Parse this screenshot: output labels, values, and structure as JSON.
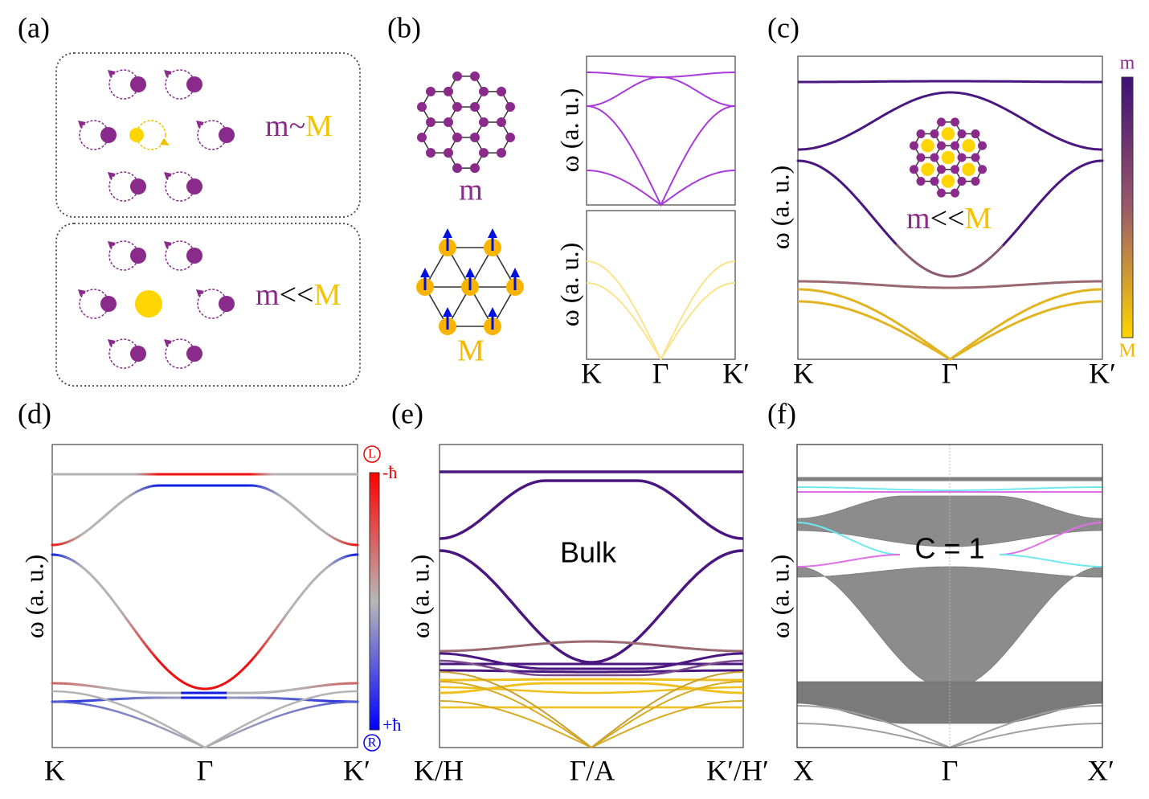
{
  "panels": {
    "a": {
      "label": "(a)",
      "top": {
        "m": "m",
        "sep": "~",
        "M": "M"
      },
      "bottom": {
        "m": "m",
        "sep": "<<",
        "M": "M"
      }
    },
    "b": {
      "label": "(b)",
      "lattice_m": "m",
      "lattice_M": "M",
      "ylabel": "ω (a. u.)",
      "xticks": [
        "K",
        "Γ",
        "K′"
      ]
    },
    "c": {
      "label": "(c)",
      "ylabel": "ω (a. u.)",
      "xticks": [
        "K",
        "Γ",
        "K′"
      ],
      "inset": {
        "m": "m",
        "sep": "<<",
        "M": "M"
      },
      "colorbar": {
        "top": "m",
        "bottom": "M"
      }
    },
    "d": {
      "label": "(d)",
      "ylabel": "ω (a. u.)",
      "xticks": [
        "K",
        "Γ",
        "K′"
      ],
      "colorbar": {
        "top": "-ħ",
        "bottom": "+ħ",
        "top_icon": "L",
        "bottom_icon": "R"
      }
    },
    "e": {
      "label": "(e)",
      "ylabel": "ω (a. u.)",
      "xticks": [
        "K/H",
        "Γ/A",
        "K′/H′"
      ],
      "annotation": "Bulk"
    },
    "f": {
      "label": "(f)",
      "ylabel": "ω (a. u.)",
      "xticks": [
        "X",
        "Γ",
        "X′"
      ],
      "annotation": "C = 1"
    }
  }
}
